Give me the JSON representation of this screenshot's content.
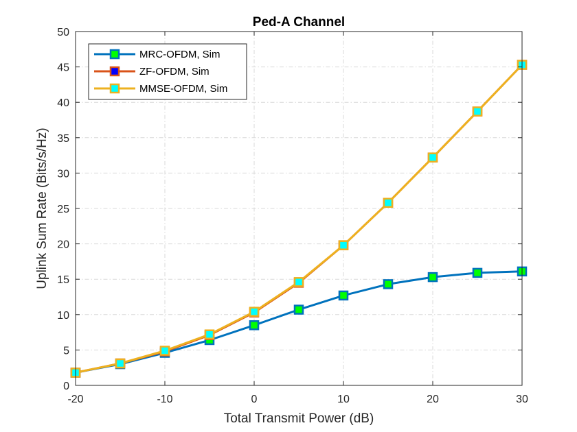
{
  "chart_data": {
    "type": "line",
    "title": "Ped-A Channel",
    "xlabel": "Total Transmit Power (dB)",
    "ylabel": "Uplink Sum Rate (Bits/s/Hz)",
    "xlim": [
      -20,
      30
    ],
    "ylim": [
      0,
      50
    ],
    "xticks": [
      -20,
      -10,
      0,
      10,
      20,
      30
    ],
    "yticks": [
      0,
      5,
      10,
      15,
      20,
      25,
      30,
      35,
      40,
      45,
      50
    ],
    "grid": true,
    "legend_position": "top-left",
    "x": [
      -20,
      -15,
      -10,
      -5,
      0,
      5,
      10,
      15,
      20,
      25,
      30
    ],
    "series": [
      {
        "name": "MRC-OFDM, Sim",
        "line_color": "#0072BD",
        "marker": "square",
        "marker_edge": "#0072BD",
        "marker_face": "#00FF00",
        "values": [
          1.8,
          3.0,
          4.6,
          6.4,
          8.5,
          10.7,
          12.7,
          14.3,
          15.3,
          15.9,
          16.1
        ]
      },
      {
        "name": "ZF-OFDM, Sim",
        "line_color": "#D95319",
        "marker": "square",
        "marker_edge": "#D95319",
        "marker_face": "#0000FF",
        "values": [
          1.8,
          3.1,
          4.8,
          7.1,
          10.3,
          14.5,
          19.8,
          25.8,
          32.2,
          38.7,
          45.3
        ]
      },
      {
        "name": "MMSE-OFDM, Sim",
        "line_color": "#EDB120",
        "marker": "square",
        "marker_edge": "#EDB120",
        "marker_face": "#00FFFF",
        "values": [
          1.8,
          3.1,
          4.9,
          7.2,
          10.4,
          14.6,
          19.8,
          25.8,
          32.2,
          38.7,
          45.3
        ]
      }
    ]
  }
}
